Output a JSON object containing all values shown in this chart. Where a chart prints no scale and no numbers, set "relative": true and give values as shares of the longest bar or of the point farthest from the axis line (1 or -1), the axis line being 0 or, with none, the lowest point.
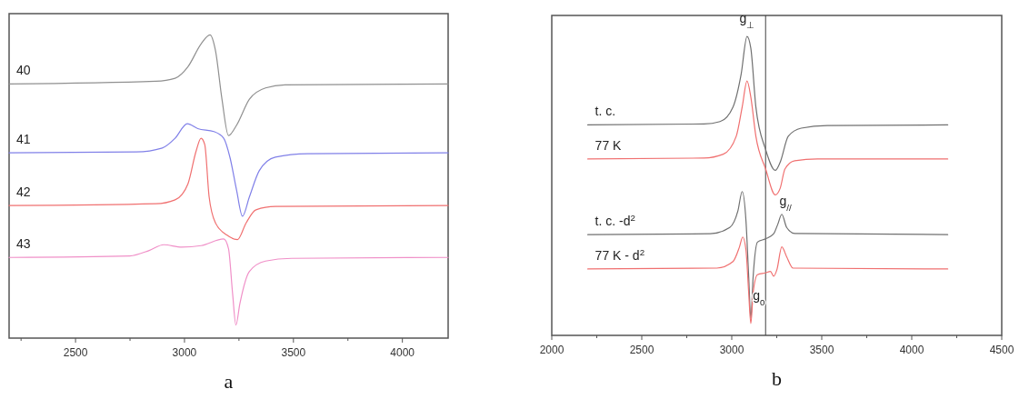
{
  "chart_data": [
    {
      "type": "line",
      "relative": true,
      "xlabel": "a",
      "xlim": [
        2195,
        4210
      ],
      "xticks": [
        {
          "value": 2250,
          "label": null
        },
        2500,
        {
          "value": 2750,
          "label": null
        },
        3000,
        {
          "value": 3250,
          "label": null
        },
        3500,
        {
          "value": 3750,
          "label": null
        },
        4000
      ],
      "series": [
        {
          "name": "40",
          "color": "#909090",
          "x": [
            2195,
            2868,
            2957,
            3016,
            3076,
            3117,
            3142,
            3172,
            3202,
            3239,
            3298,
            3372,
            3461,
            4210
          ],
          "values": [
            0.838,
            0.847,
            0.857,
            0.895,
            0.97,
            1.0,
            0.949,
            0.788,
            0.668,
            0.702,
            0.788,
            0.825,
            0.835,
            0.838
          ]
        },
        {
          "name": "41",
          "color": "#8080e8",
          "x": [
            2195,
            2779,
            2898,
            2957,
            3013,
            3061,
            3135,
            3180,
            3209,
            3239,
            3266,
            3298,
            3343,
            3417,
            3565,
            4210
          ],
          "values": [
            0.611,
            0.614,
            0.627,
            0.659,
            0.707,
            0.691,
            0.681,
            0.659,
            0.595,
            0.488,
            0.402,
            0.466,
            0.552,
            0.597,
            0.608,
            0.611
          ]
        },
        {
          "name": "42",
          "color": "#f07070",
          "x": [
            2195,
            2868,
            2957,
            3016,
            3053,
            3076,
            3093,
            3113,
            3142,
            3194,
            3243,
            3283,
            3328,
            3417,
            4210
          ],
          "values": [
            0.437,
            0.443,
            0.456,
            0.509,
            0.616,
            0.659,
            0.638,
            0.466,
            0.38,
            0.34,
            0.325,
            0.38,
            0.423,
            0.434,
            0.437
          ]
        },
        {
          "name": "43",
          "color": "#f090c8",
          "x": [
            2195,
            2749,
            2838,
            2905,
            2987,
            3076,
            3180,
            3202,
            3221,
            3236,
            3254,
            3298,
            3372,
            3491,
            4210
          ],
          "values": [
            0.266,
            0.271,
            0.289,
            0.308,
            0.3,
            0.305,
            0.327,
            0.295,
            0.145,
            0.043,
            0.113,
            0.22,
            0.254,
            0.263,
            0.266
          ]
        }
      ]
    },
    {
      "type": "line",
      "relative": true,
      "xlabel": "b",
      "xlim": [
        2000,
        4500
      ],
      "xticks": [
        2000,
        {
          "value": 2250,
          "label": null
        },
        2500,
        {
          "value": 2750,
          "label": null
        },
        3000,
        {
          "value": 3250,
          "label": null
        },
        3500,
        {
          "value": 3750,
          "label": null
        },
        4000,
        {
          "value": 4250,
          "label": null
        },
        4500
      ],
      "ref_lines": [
        {
          "axis": "x",
          "value": 3188,
          "color": "#404040"
        }
      ],
      "annotations": [
        {
          "text": "g$_{⊥}$",
          "x": 3085,
          "y": 1.0
        },
        {
          "text": "g$_{//}$",
          "x": 3278,
          "y": 0.405
        },
        {
          "text": "g$_{0}$",
          "x": 3188,
          "y": 0.209
        }
      ],
      "series": [
        {
          "name": "t. c.",
          "color": "#707070",
          "x": [
            2200,
            2845,
            2935,
            3007,
            3052,
            3085,
            3106,
            3134,
            3188,
            3242,
            3269,
            3314,
            3386,
            3531,
            4200
          ],
          "values": [
            0.704,
            0.707,
            0.715,
            0.764,
            0.873,
            1.0,
            0.96,
            0.764,
            0.622,
            0.552,
            0.579,
            0.666,
            0.693,
            0.702,
            0.704
          ]
        },
        {
          "name": "77 K",
          "color": "#f07070",
          "x": [
            2200,
            2845,
            2953,
            3025,
            3058,
            3085,
            3106,
            3134,
            3188,
            3242,
            3269,
            3296,
            3350,
            3476,
            4200
          ],
          "values": [
            0.59,
            0.593,
            0.606,
            0.666,
            0.764,
            0.851,
            0.797,
            0.666,
            0.557,
            0.47,
            0.492,
            0.557,
            0.584,
            0.59,
            0.59
          ]
        },
        {
          "name": "t. c. -d$^{2}$",
          "color": "#707070",
          "x": [
            2200,
            2881,
            2989,
            3034,
            3058,
            3079,
            3094,
            3106,
            3119,
            3143,
            3188,
            3233,
            3256,
            3278,
            3305,
            3350,
            4200
          ],
          "values": [
            0.337,
            0.34,
            0.361,
            0.416,
            0.481,
            0.383,
            0.198,
            0.057,
            0.198,
            0.312,
            0.323,
            0.34,
            0.372,
            0.405,
            0.361,
            0.341,
            0.337
          ]
        },
        {
          "name": "77 K - d$^{2}$",
          "color": "#f07070",
          "x": [
            2200,
            2917,
            3007,
            3043,
            3061,
            3079,
            3094,
            3106,
            3119,
            3143,
            3188,
            3215,
            3233,
            3251,
            3278,
            3305,
            3341,
            4200
          ],
          "values": [
            0.222,
            0.225,
            0.247,
            0.296,
            0.329,
            0.285,
            0.144,
            0.04,
            0.144,
            0.203,
            0.209,
            0.214,
            0.198,
            0.22,
            0.296,
            0.263,
            0.225,
            0.222
          ]
        }
      ]
    }
  ]
}
